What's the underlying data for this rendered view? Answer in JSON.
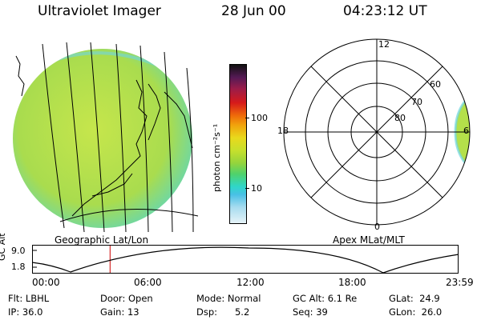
{
  "header": {
    "title": "Ultraviolet Imager",
    "date": "28 Jun 00",
    "time": "04:23:12 UT"
  },
  "colorbar": {
    "unit_label": "photon cm⁻²s⁻¹",
    "ticks": [
      "100",
      "10"
    ]
  },
  "maps": {
    "left_label": "Geographic Lat/Lon",
    "right_label": "Apex MLat/MLT"
  },
  "polar": {
    "mlt_labels": [
      "12",
      "18",
      "6",
      "0"
    ],
    "lat_labels": [
      "60",
      "70",
      "80"
    ]
  },
  "orbit": {
    "ylabel": "GC Alt",
    "yticks": [
      "9.0",
      "1.8"
    ],
    "xticks": [
      "00:00",
      "06:00",
      "12:00",
      "18:00",
      "23:59"
    ],
    "current_time_hours": 4.39
  },
  "info": {
    "row1": [
      {
        "label": "Flt:",
        "value": "LBHL"
      },
      {
        "label": "Door:",
        "value": "Open"
      },
      {
        "label": "Mode:",
        "value": "Normal"
      },
      {
        "label": "GC Alt:",
        "value": "6.1 Re"
      },
      {
        "label": "GLat:",
        "value": "24.9"
      }
    ],
    "row2": [
      {
        "label": "IP:",
        "value": "36.0"
      },
      {
        "label": "Gain:",
        "value": "13"
      },
      {
        "label": "Dsp:",
        "value": "5.2"
      },
      {
        "label": "Seq:",
        "value": "39"
      },
      {
        "label": "GLon:",
        "value": "26.0"
      }
    ]
  },
  "colors": {
    "accent_line": "#cc0000",
    "disk_fill": "#b4e04a"
  }
}
